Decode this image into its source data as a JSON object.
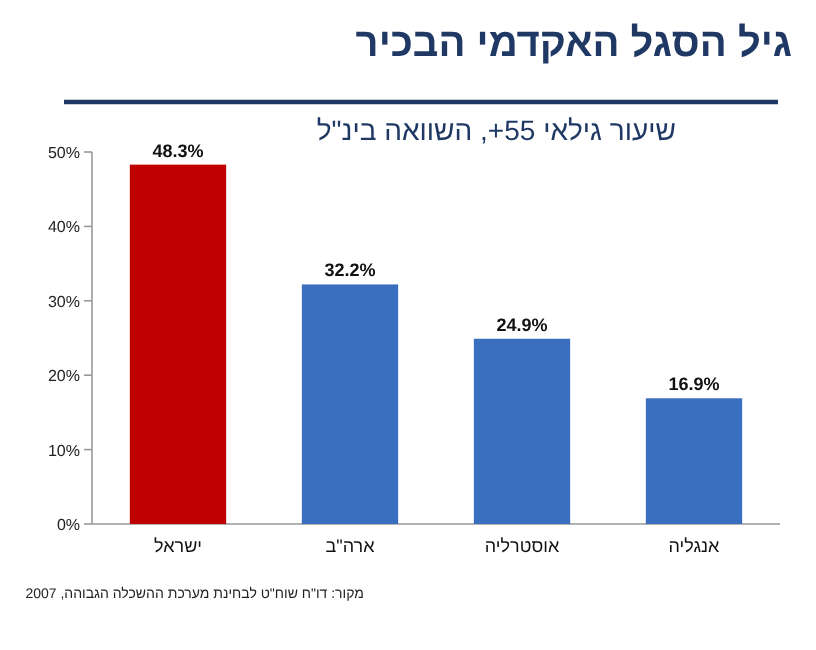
{
  "chart_data": {
    "type": "bar",
    "title": "גיל הסגל האקדמי הבכיר",
    "subtitle": "שיעור גילאי 55+, השוואה בינ\"ל",
    "categories": [
      "ישראל",
      "ארה\"ב",
      "אוסטרליה",
      "אנגליה"
    ],
    "values": [
      48.3,
      32.2,
      24.9,
      16.9
    ],
    "colors": [
      "#c00000",
      "#3a6fbf",
      "#3a6fbf",
      "#3a6fbf"
    ],
    "value_labels": [
      "48.3%",
      "32.2%",
      "24.9%",
      "16.9%"
    ],
    "ylim": [
      0,
      50
    ],
    "yticks": [
      {
        "value": 0,
        "label": "0%"
      },
      {
        "value": 10,
        "label": "10%"
      },
      {
        "value": 20,
        "label": "20%"
      },
      {
        "value": 30,
        "label": "30%"
      },
      {
        "value": 40,
        "label": "40%"
      },
      {
        "value": 50,
        "label": "50%"
      }
    ],
    "annotations": [
      "מקור: דו\"ח שוח\"ט לבחינת מערכת ההשכלה הגבוהה, 2007"
    ]
  }
}
